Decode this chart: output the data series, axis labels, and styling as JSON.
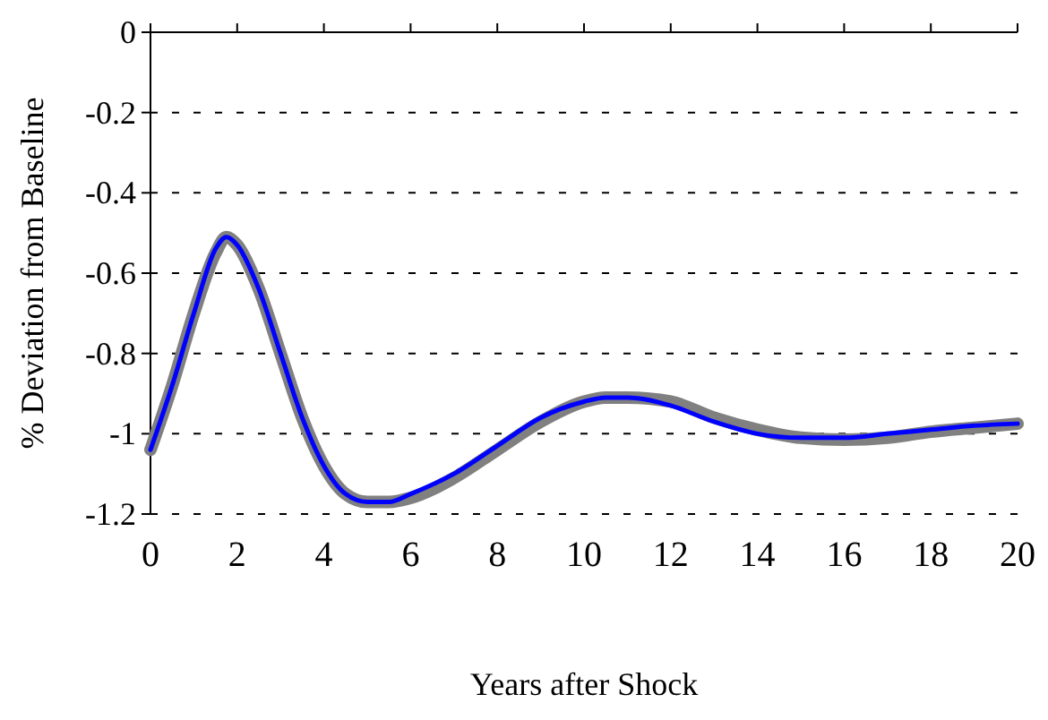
{
  "chart_data": {
    "type": "line",
    "xlabel": "Years after Shock",
    "ylabel": "% Deviation from Baseline",
    "xlim": [
      0,
      20
    ],
    "xticks": [
      0,
      2,
      4,
      6,
      8,
      10,
      12,
      14,
      16,
      18,
      20
    ],
    "ylim": [
      -1.2,
      0
    ],
    "yticks": [
      -1.2,
      -1,
      -0.8,
      -0.6,
      -0.4,
      -0.2,
      0
    ],
    "grid": "y",
    "series": [
      {
        "color": "#808080",
        "x": [
          0,
          0.5,
          1,
          1.5,
          1.75,
          2,
          2.5,
          3,
          3.5,
          4,
          4.5,
          5,
          5.5,
          6,
          7,
          8,
          9,
          10,
          10.5,
          11,
          12,
          13,
          14,
          15,
          16,
          17,
          18,
          19,
          20
        ],
        "values": [
          -1.04,
          -0.88,
          -0.7,
          -0.55,
          -0.51,
          -0.53,
          -0.64,
          -0.8,
          -0.96,
          -1.08,
          -1.15,
          -1.17,
          -1.17,
          -1.16,
          -1.11,
          -1.04,
          -0.97,
          -0.92,
          -0.91,
          -0.91,
          -0.92,
          -0.96,
          -0.99,
          -1.01,
          -1.015,
          -1.01,
          -0.995,
          -0.985,
          -0.975
        ]
      },
      {
        "color": "#0000ff",
        "x": [
          0,
          0.5,
          1,
          1.5,
          1.75,
          2,
          2.5,
          3,
          3.5,
          4,
          4.5,
          5,
          5.5,
          6,
          7,
          8,
          9,
          10,
          10.5,
          11,
          12,
          13,
          14,
          15,
          16,
          17,
          18,
          19,
          20
        ],
        "values": [
          -1.04,
          -0.88,
          -0.7,
          -0.54,
          -0.51,
          -0.53,
          -0.64,
          -0.8,
          -0.96,
          -1.08,
          -1.15,
          -1.17,
          -1.17,
          -1.15,
          -1.1,
          -1.03,
          -0.96,
          -0.92,
          -0.91,
          -0.91,
          -0.93,
          -0.97,
          -1,
          -1.01,
          -1.01,
          -1,
          -0.99,
          -0.98,
          -0.975
        ]
      }
    ]
  }
}
